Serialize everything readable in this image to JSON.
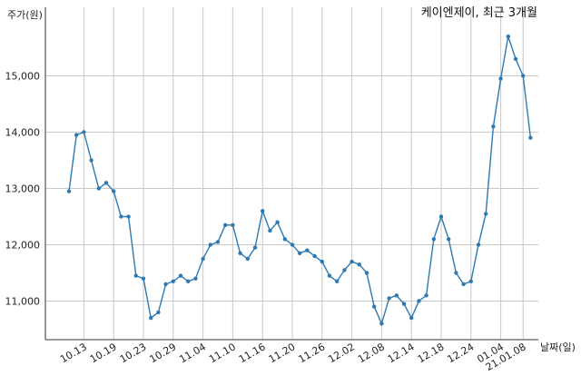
{
  "chart_data": {
    "type": "line",
    "title": "케이엔제이, 최근 3개월",
    "ylabel": "주가(원)",
    "xlabel": "날짜(일)",
    "ylim": [
      10350,
      15900
    ],
    "yticks": [
      11000,
      12000,
      13000,
      14000,
      15000
    ],
    "ytick_labels": [
      "11,000",
      "12,000",
      "13,000",
      "14,000",
      "15,000"
    ],
    "xtick_labels": [
      "10.13",
      "10.19",
      "10.23",
      "10.29",
      "11.04",
      "11.10",
      "11.16",
      "11.20",
      "11.26",
      "12.02",
      "12.08",
      "12.14",
      "12.18",
      "12.24",
      "01.04",
      "21.01.08"
    ],
    "xtick_index": [
      2,
      6,
      10,
      14,
      18,
      22,
      26,
      30,
      34,
      38,
      42,
      46,
      50,
      54,
      58,
      61
    ],
    "line_color": "#2e7ab0",
    "grid": true,
    "series": [
      {
        "values": [
          12950,
          13950,
          14000,
          13500,
          13000,
          13100,
          12950,
          12500,
          12500,
          11450,
          11400,
          10700,
          10800,
          11300,
          11350,
          11450,
          11350,
          11400,
          11750,
          12000,
          12050,
          12350,
          12350,
          11850,
          11750,
          11950,
          12600,
          12250,
          12400,
          12100,
          12000,
          11850,
          11900,
          11800,
          11700,
          11450,
          11350,
          11550,
          11700,
          11650,
          11500,
          10900,
          10600,
          11050,
          11100,
          10950,
          10700,
          11000,
          11100,
          12100,
          12500,
          12100,
          11500,
          11300,
          11350,
          12000,
          12550,
          14100,
          14950,
          15700,
          15300,
          15000,
          13900
        ]
      }
    ]
  }
}
